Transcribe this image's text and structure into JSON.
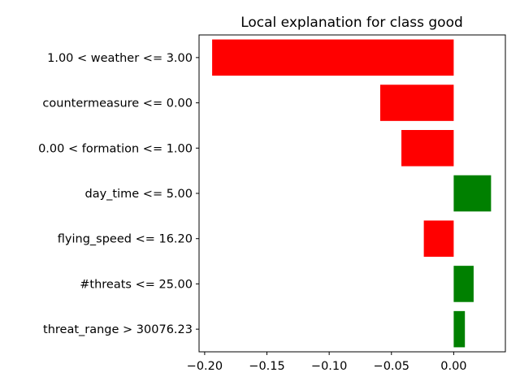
{
  "chart_data": {
    "type": "bar",
    "orientation": "horizontal",
    "title": "Local explanation for class good",
    "xlabel": "",
    "ylabel": "",
    "categories": [
      "1.00 < weather <= 3.00",
      "countermeasure <= 0.00",
      "0.00 < formation <= 1.00",
      "day_time <= 5.00",
      "flying_speed <= 16.20",
      "#threats <= 25.00",
      "threat_range > 30076.23"
    ],
    "values": [
      -0.194,
      -0.059,
      -0.042,
      0.03,
      -0.024,
      0.016,
      0.009
    ],
    "xlim": [
      -0.2045,
      0.0415
    ],
    "xticks": [
      -0.2,
      -0.15,
      -0.1,
      -0.05,
      0.0
    ],
    "xtick_labels": [
      "−0.20",
      "−0.15",
      "−0.10",
      "−0.05",
      "0.00"
    ],
    "grid": false,
    "legend": "none",
    "colors": {
      "positive": "#008000",
      "negative": "#ff0000",
      "axis": "#000000"
    }
  }
}
